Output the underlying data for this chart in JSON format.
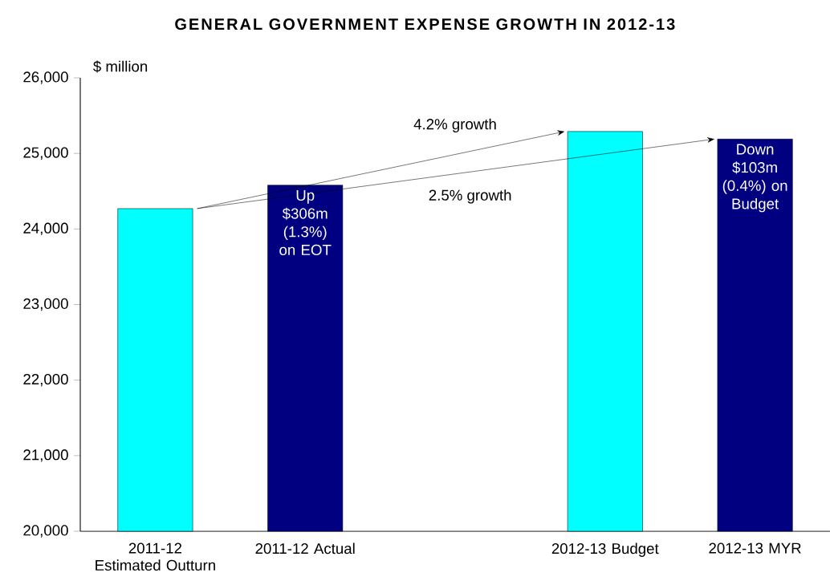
{
  "chart_data": {
    "type": "bar",
    "title": "GENERAL GOVERNMENT EXPENSE GROWTH IN 2012-13",
    "ylabel": "$ million",
    "categories": [
      "2011-12 Estimated Outturn",
      "2011-12 Actual",
      null,
      "2012-13 Budget",
      "2012-13 MYR"
    ],
    "values": [
      24270,
      24580,
      null,
      25290,
      25190
    ],
    "colors": [
      "#00ffff",
      "#000080",
      "#000080",
      "#00ffff",
      "#000080"
    ],
    "ylim": [
      20000,
      26000
    ],
    "yticks": [
      {
        "value": 20000,
        "label": "20,000"
      },
      {
        "value": 21000,
        "label": "21,000"
      },
      {
        "value": 22000,
        "label": "22,000"
      },
      {
        "value": 23000,
        "label": "23,000"
      },
      {
        "value": 24000,
        "label": "24,000"
      },
      {
        "value": 25000,
        "label": "25,000"
      },
      {
        "value": 26000,
        "label": "26,000"
      }
    ],
    "annotations": [
      "4.2% growth",
      "2.5% growth",
      "Up $306m (1.3%) on EOT",
      "Down $103m (0.4%) on Budget"
    ],
    "grid": false
  }
}
